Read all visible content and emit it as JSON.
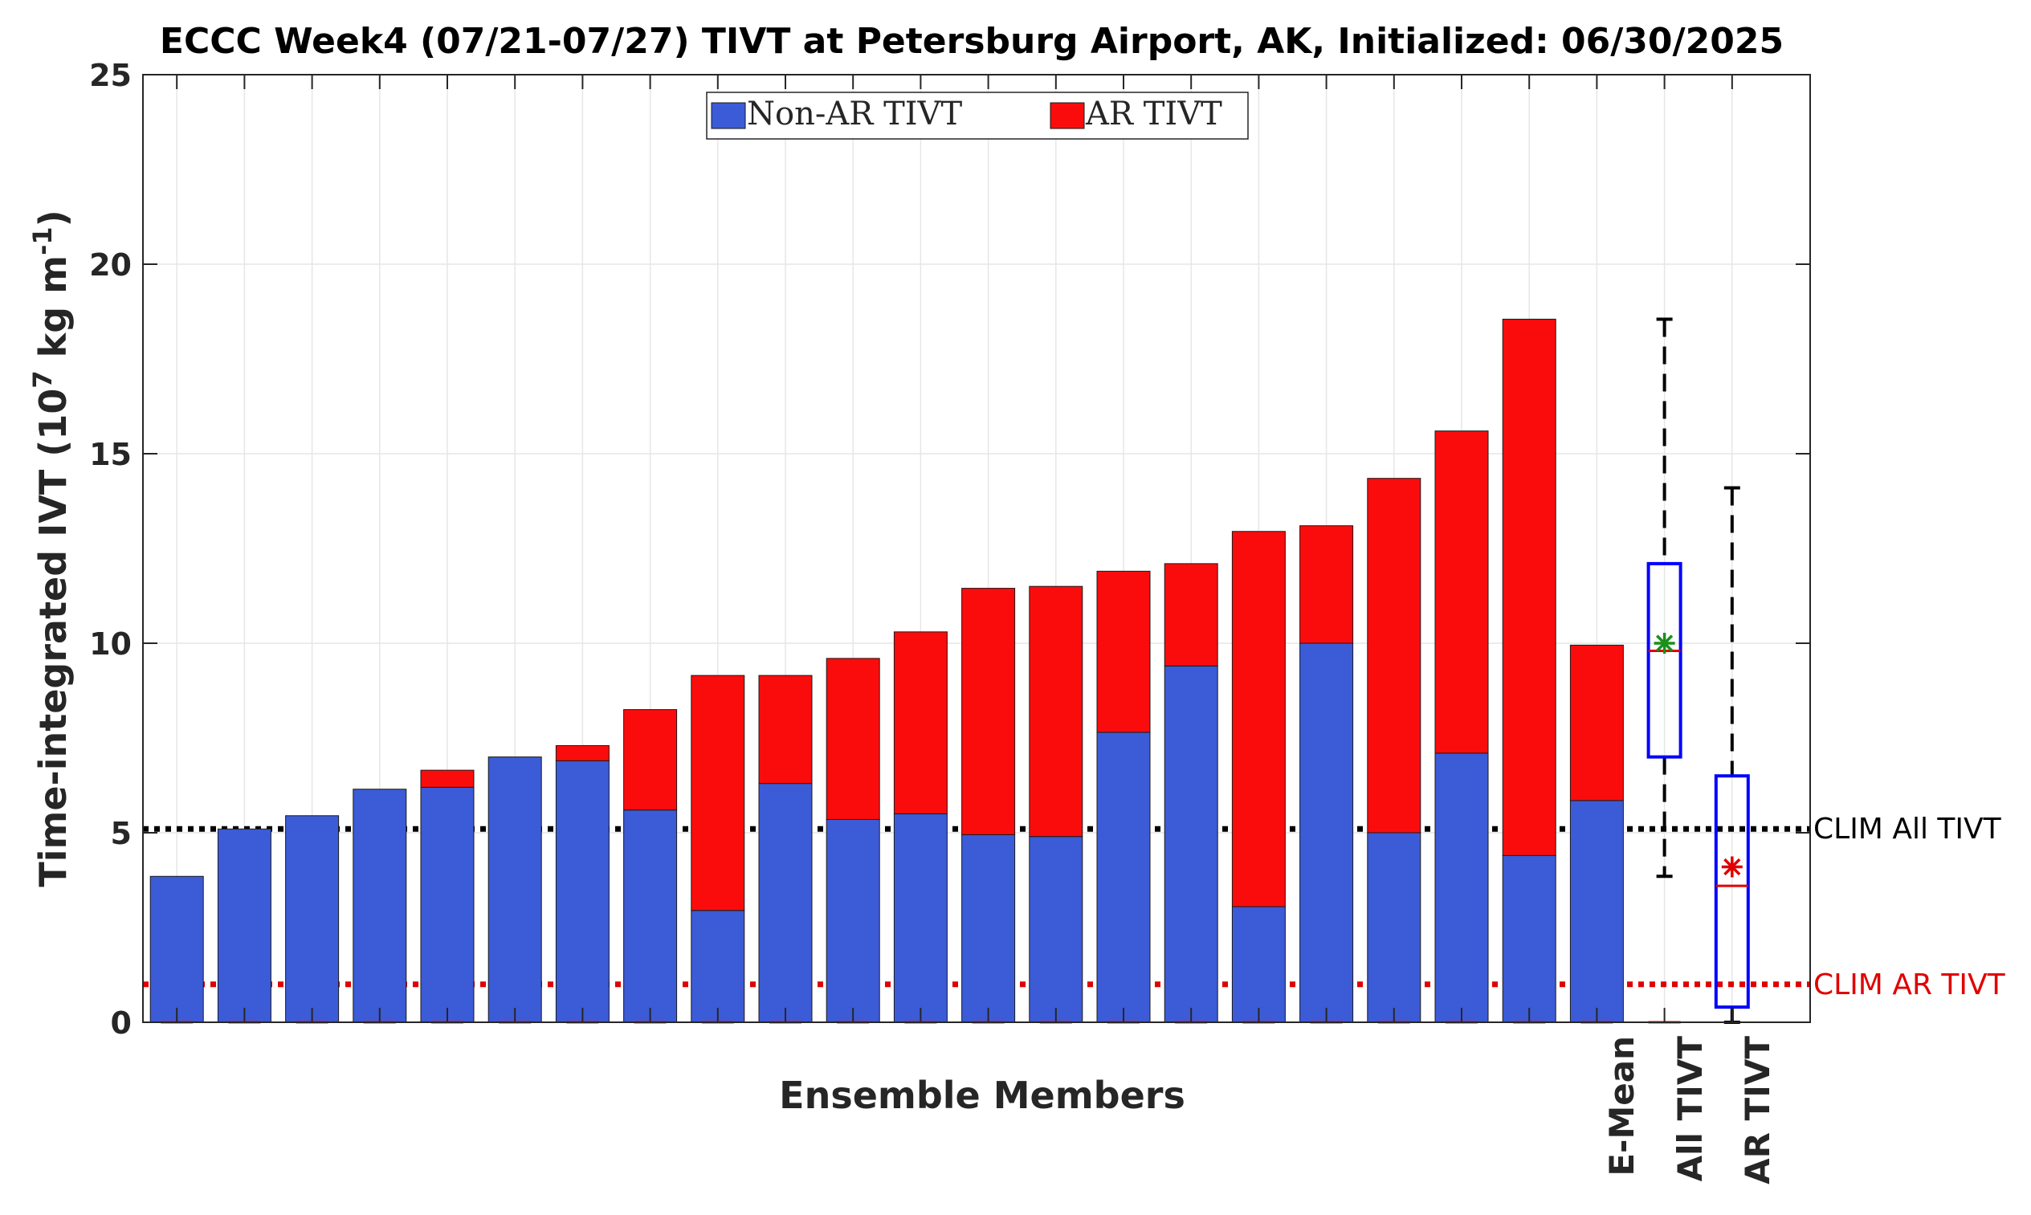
{
  "chart_data": {
    "type": "bar",
    "stacked": true,
    "title": "ECCC Week4 (07/21-07/27) TIVT at Petersburg Airport, AK, Initialized: 06/30/2025",
    "xlabel": "Ensemble Members",
    "ylabel_main": "Time-integrated IVT (10",
    "ylabel_sup": "7",
    "ylabel_mid": " kg m",
    "ylabel_sup2": "-1",
    "ylabel_end": ")",
    "ylim": [
      0,
      25
    ],
    "yticks": [
      "0",
      "5",
      "10",
      "15",
      "20",
      "25"
    ],
    "grid": true,
    "legend_position": "top-center",
    "colors": {
      "non_ar": "#3c5bd6",
      "ar": "#fb0c0c",
      "clim_all": "#000000",
      "clim_ar": "#e00000",
      "box": "#0000ff",
      "whisker": "#000000",
      "mean_all": "#1a8f1a",
      "mean_ar": "#e00000",
      "median_all": "#e00000",
      "median_ar": "#e00000",
      "grid": "#e6e6e6",
      "axis": "#262626"
    },
    "series": [
      {
        "name": "Non-AR TIVT",
        "values": [
          3.85,
          5.1,
          5.45,
          6.15,
          6.2,
          7.0,
          6.9,
          5.6,
          2.95,
          6.3,
          5.35,
          5.5,
          4.95,
          4.9,
          7.65,
          9.4,
          3.05,
          10.0,
          5.0,
          7.1,
          4.4,
          5.85
        ]
      },
      {
        "name": "AR TIVT",
        "values": [
          0,
          0,
          0,
          0,
          0.45,
          0,
          0.4,
          2.65,
          6.2,
          2.85,
          4.25,
          4.8,
          6.5,
          6.6,
          4.25,
          2.7,
          9.9,
          3.1,
          9.35,
          8.5,
          14.15,
          4.1
        ]
      }
    ],
    "category_labels": {
      "emean": "E-Mean",
      "all_tivt": "All TIVT",
      "ar_tivt": "AR TIVT"
    },
    "reference_lines": [
      {
        "label": "CLIM All TIVT",
        "value": 5.1
      },
      {
        "label": "CLIM AR TIVT",
        "value": 1.0
      }
    ],
    "boxplots": [
      {
        "name": "All TIVT",
        "min": 3.85,
        "q1": 7.0,
        "median": 9.8,
        "q3": 12.1,
        "max": 18.55,
        "mean": 10.0
      },
      {
        "name": "AR TIVT",
        "min": 0,
        "q1": 0.4,
        "median": 3.6,
        "q3": 6.5,
        "max": 14.1,
        "mean": 4.1
      }
    ]
  }
}
